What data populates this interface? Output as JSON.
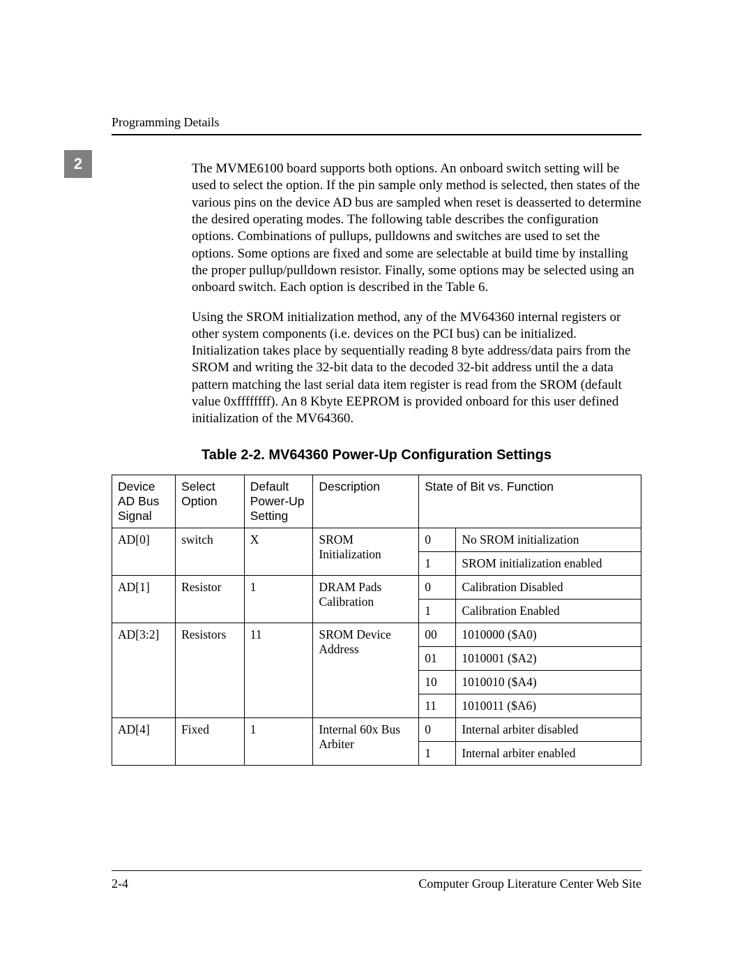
{
  "header": {
    "running_head": "Programming Details",
    "chapter_tab": "2"
  },
  "paragraphs": {
    "p1": "The MVME6100 board supports both options. An onboard switch setting will be used to select the option. If the pin sample only method is selected, then states of the various pins on the device AD bus are sampled when reset is deasserted to determine the desired operating modes. The following table describes the configuration options. Combinations of pullups, pulldowns and switches are used to set the options. Some options are fixed and some are selectable at build time by installing the proper pullup/pulldown resistor. Finally, some options may be selected using an onboard switch. Each option is described in the Table 6.",
    "p2": "Using the SROM initialization method, any of the MV64360 internal registers or other system components (i.e. devices on the PCI bus) can be initialized. Initialization takes place by sequentially reading 8 byte address/data pairs from the SROM and writing the 32-bit data to the decoded 32-bit address until the a data pattern matching the last serial data item register is read from the SROM (default value 0xffffffff). An 8 Kbyte EEPROM is provided onboard for this user defined initialization of the MV64360."
  },
  "table": {
    "caption": "Table 2-2. MV64360 Power-Up Configuration Settings",
    "columns": {
      "c1": "Device AD Bus Signal",
      "c2": "Select Option",
      "c3": "Default Power-Up Setting",
      "c4": "Description",
      "c5_6": "State of Bit vs. Function"
    },
    "rows": [
      {
        "signal": "AD[0]",
        "select": "switch",
        "default": "X",
        "desc": "SROM Initialization",
        "states": [
          {
            "bit": "0",
            "func": "No SROM initialization"
          },
          {
            "bit": "1",
            "func": "SROM initialization enabled"
          }
        ]
      },
      {
        "signal": "AD[1]",
        "select": "Resistor",
        "default": "1",
        "desc": "DRAM Pads Calibration",
        "states": [
          {
            "bit": "0",
            "func": "Calibration Disabled"
          },
          {
            "bit": "1",
            "func": "Calibration Enabled"
          }
        ]
      },
      {
        "signal": "AD[3:2]",
        "select": "Resistors",
        "default": "11",
        "desc": "SROM Device Address",
        "states": [
          {
            "bit": "00",
            "func": "1010000 ($A0)"
          },
          {
            "bit": "01",
            "func": "1010001 ($A2)"
          },
          {
            "bit": "10",
            "func": "1010010 ($A4)"
          },
          {
            "bit": "11",
            "func": "1010011 ($A6)"
          }
        ]
      },
      {
        "signal": "AD[4]",
        "select": "Fixed",
        "default": "1",
        "desc": "Internal 60x Bus Arbiter",
        "states": [
          {
            "bit": "0",
            "func": "Internal arbiter disabled"
          },
          {
            "bit": "1",
            "func": "Internal arbiter enabled"
          }
        ]
      }
    ]
  },
  "footer": {
    "page_num": "2-4",
    "site": "Computer Group Literature Center Web Site"
  }
}
